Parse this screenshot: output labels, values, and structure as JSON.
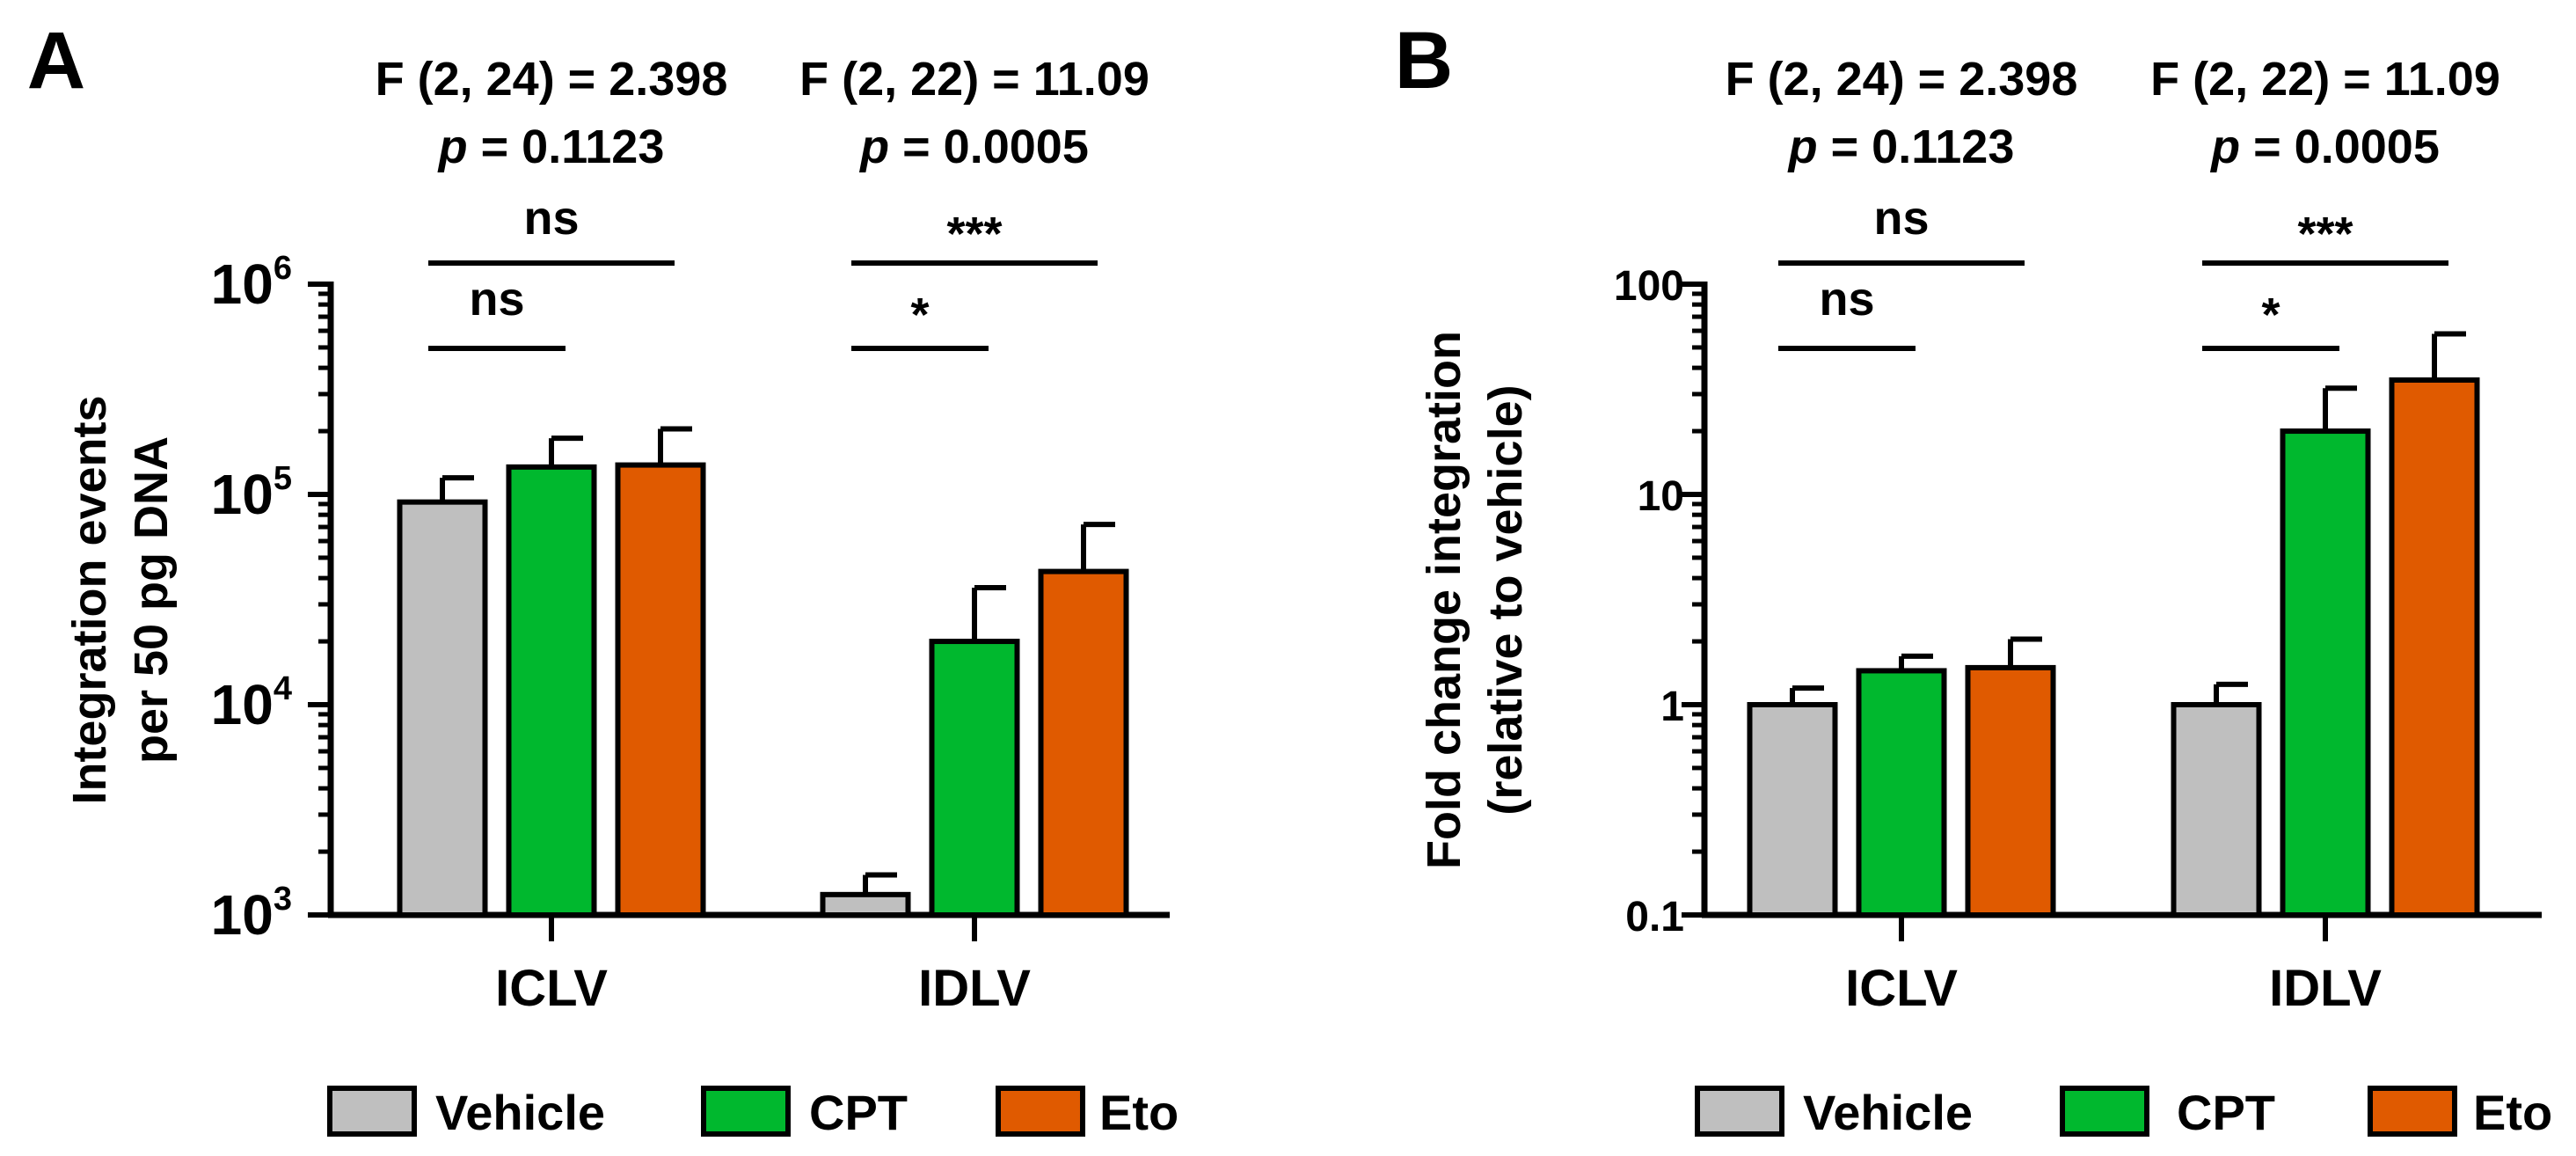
{
  "colors": {
    "Vehicle": "#bfbfbf",
    "CPT": "#00b82e",
    "Eto": "#e05a00",
    "ink": "#000000"
  },
  "legend": [
    {
      "name": "Vehicle",
      "label": "Vehicle"
    },
    {
      "name": "CPT",
      "label": "CPT"
    },
    {
      "name": "Eto",
      "label": "Eto"
    }
  ],
  "chart_data": [
    {
      "panel": "A",
      "type": "bar",
      "scale": "log",
      "ylabel_lines": [
        "Integration events",
        "per 50 pg DNA"
      ],
      "ylim": [
        1000,
        1000000
      ],
      "ticks": [
        {
          "value": 1000,
          "base": "10",
          "exp": "3"
        },
        {
          "value": 10000,
          "base": "10",
          "exp": "4"
        },
        {
          "value": 100000,
          "base": "10",
          "exp": "5"
        },
        {
          "value": 1000000,
          "base": "10",
          "exp": "6"
        }
      ],
      "categories": [
        "ICLV",
        "IDLV"
      ],
      "series": [
        {
          "name": "Vehicle",
          "values": [
            92000,
            1250
          ],
          "errors": [
            120000,
            1550
          ]
        },
        {
          "name": "CPT",
          "values": [
            135000,
            20000
          ],
          "errors": [
            185000,
            36000
          ]
        },
        {
          "name": "Eto",
          "values": [
            138000,
            43000
          ],
          "errors": [
            205000,
            72000
          ]
        }
      ],
      "stats": [
        {
          "line1": "F (2, 24) = 2.398",
          "p_label": "p",
          "p_value": " = 0.1123"
        },
        {
          "line1": "F (2, 22) = 11.09",
          "p_label": "p",
          "p_value": " = 0.0005"
        }
      ],
      "brackets": [
        {
          "group": 0,
          "from": 0,
          "to": 2,
          "label": "ns",
          "level": 2
        },
        {
          "group": 0,
          "from": 0,
          "to": 1,
          "label": "ns",
          "level": 1
        },
        {
          "group": 1,
          "from": 0,
          "to": 2,
          "label": "***",
          "level": 2
        },
        {
          "group": 1,
          "from": 0,
          "to": 1,
          "label": "*",
          "level": 1
        }
      ]
    },
    {
      "panel": "B",
      "type": "bar",
      "scale": "log",
      "ylabel_lines": [
        "Fold change integration",
        "(relative to vehicle)"
      ],
      "ylim": [
        0.1,
        100
      ],
      "ticks": [
        {
          "value": 0.1,
          "base": "0.1",
          "exp": ""
        },
        {
          "value": 1,
          "base": "1",
          "exp": ""
        },
        {
          "value": 10,
          "base": "10",
          "exp": ""
        },
        {
          "value": 100,
          "base": "100",
          "exp": ""
        }
      ],
      "categories": [
        "ICLV",
        "IDLV"
      ],
      "series": [
        {
          "name": "Vehicle",
          "values": [
            1.0,
            1.0
          ],
          "errors": [
            1.2,
            1.25
          ]
        },
        {
          "name": "CPT",
          "values": [
            1.45,
            20
          ],
          "errors": [
            1.7,
            32
          ]
        },
        {
          "name": "Eto",
          "values": [
            1.5,
            35
          ],
          "errors": [
            2.05,
            58
          ]
        }
      ],
      "stats": [
        {
          "line1": "F (2, 24) = 2.398",
          "p_label": "p",
          "p_value": " = 0.1123"
        },
        {
          "line1": "F (2, 22) = 11.09",
          "p_label": "p",
          "p_value": " = 0.0005"
        }
      ],
      "brackets": [
        {
          "group": 0,
          "from": 0,
          "to": 2,
          "label": "ns",
          "level": 2
        },
        {
          "group": 0,
          "from": 0,
          "to": 1,
          "label": "ns",
          "level": 1
        },
        {
          "group": 1,
          "from": 0,
          "to": 2,
          "label": "***",
          "level": 2
        },
        {
          "group": 1,
          "from": 0,
          "to": 1,
          "label": "*",
          "level": 1
        }
      ]
    }
  ]
}
